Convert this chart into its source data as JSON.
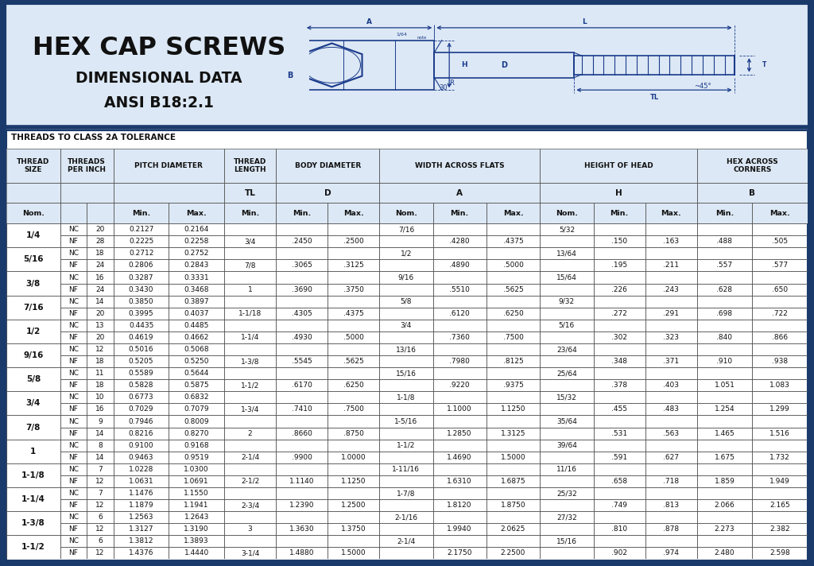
{
  "title_line1": "HEX CAP SCREWS",
  "title_line2": "DIMENSIONAL DATA",
  "title_line3": "ANSI B18:2.1",
  "section_title": "THREADS TO CLASS 2A TOLERANCE",
  "bg_color": "#dce8f5",
  "border_color": "#1a3a6b",
  "rows": [
    [
      "1/4",
      "NC",
      "20",
      "0.2127",
      "0.2164",
      "",
      "",
      "",
      "7/16",
      "",
      "",
      "5/32",
      "",
      "",
      "",
      ""
    ],
    [
      "",
      "NF",
      "28",
      "0.2225",
      "0.2258",
      "3/4",
      ".2450",
      ".2500",
      "",
      ".4280",
      ".4375",
      "",
      ".150",
      ".163",
      ".488",
      ".505"
    ],
    [
      "5/16",
      "NC",
      "18",
      "0.2712",
      "0.2752",
      "",
      "",
      "",
      "1/2",
      "",
      "",
      "13/64",
      "",
      "",
      "",
      ""
    ],
    [
      "",
      "NF",
      "24",
      "0.2806",
      "0.2843",
      "7/8",
      ".3065",
      ".3125",
      "",
      ".4890",
      ".5000",
      "",
      ".195",
      ".211",
      ".557",
      ".577"
    ],
    [
      "3/8",
      "NC",
      "16",
      "0.3287",
      "0.3331",
      "",
      "",
      "",
      "9/16",
      "",
      "",
      "15/64",
      "",
      "",
      "",
      ""
    ],
    [
      "",
      "NF",
      "24",
      "0.3430",
      "0.3468",
      "1",
      ".3690",
      ".3750",
      "",
      ".5510",
      ".5625",
      "",
      ".226",
      ".243",
      ".628",
      ".650"
    ],
    [
      "7/16",
      "NC",
      "14",
      "0.3850",
      "0.3897",
      "",
      "",
      "",
      "5/8",
      "",
      "",
      "9/32",
      "",
      "",
      "",
      ""
    ],
    [
      "",
      "NF",
      "20",
      "0.3995",
      "0.4037",
      "1-1/18",
      ".4305",
      ".4375",
      "",
      ".6120",
      ".6250",
      "",
      ".272",
      ".291",
      ".698",
      ".722"
    ],
    [
      "1/2",
      "NC",
      "13",
      "0.4435",
      "0.4485",
      "",
      "",
      "",
      "3/4",
      "",
      "",
      "5/16",
      "",
      "",
      "",
      ""
    ],
    [
      "",
      "NF",
      "20",
      "0.4619",
      "0.4662",
      "1-1/4",
      ".4930",
      ".5000",
      "",
      ".7360",
      ".7500",
      "",
      ".302",
      ".323",
      ".840",
      ".866"
    ],
    [
      "9/16",
      "NC",
      "12",
      "0.5016",
      "0.5068",
      "",
      "",
      "",
      "13/16",
      "",
      "",
      "23/64",
      "",
      "",
      "",
      ""
    ],
    [
      "",
      "NF",
      "18",
      "0.5205",
      "0.5250",
      "1-3/8",
      ".5545",
      ".5625",
      "",
      ".7980",
      ".8125",
      "",
      ".348",
      ".371",
      ".910",
      ".938"
    ],
    [
      "5/8",
      "NC",
      "11",
      "0.5589",
      "0.5644",
      "",
      "",
      "",
      "15/16",
      "",
      "",
      "25/64",
      "",
      "",
      "",
      ""
    ],
    [
      "",
      "NF",
      "18",
      "0.5828",
      "0.5875",
      "1-1/2",
      ".6170",
      ".6250",
      "",
      ".9220",
      ".9375",
      "",
      ".378",
      ".403",
      "1.051",
      "1.083"
    ],
    [
      "3/4",
      "NC",
      "10",
      "0.6773",
      "0.6832",
      "",
      "",
      "",
      "1-1/8",
      "",
      "",
      "15/32",
      "",
      "",
      "",
      ""
    ],
    [
      "",
      "NF",
      "16",
      "0.7029",
      "0.7079",
      "1-3/4",
      ".7410",
      ".7500",
      "",
      "1.1000",
      "1.1250",
      "",
      ".455",
      ".483",
      "1.254",
      "1.299"
    ],
    [
      "7/8",
      "NC",
      "9",
      "0.7946",
      "0.8009",
      "",
      "",
      "",
      "1-5/16",
      "",
      "",
      "35/64",
      "",
      "",
      "",
      ""
    ],
    [
      "",
      "NF",
      "14",
      "0.8216",
      "0.8270",
      "2",
      ".8660",
      ".8750",
      "",
      "1.2850",
      "1.3125",
      "",
      ".531",
      ".563",
      "1.465",
      "1.516"
    ],
    [
      "1",
      "NC",
      "8",
      "0.9100",
      "0.9168",
      "",
      "",
      "",
      "1-1/2",
      "",
      "",
      "39/64",
      "",
      "",
      "",
      ""
    ],
    [
      "",
      "NF",
      "14",
      "0.9463",
      "0.9519",
      "2-1/4",
      ".9900",
      "1.0000",
      "",
      "1.4690",
      "1.5000",
      "",
      ".591",
      ".627",
      "1.675",
      "1.732"
    ],
    [
      "1-1/8",
      "NC",
      "7",
      "1.0228",
      "1.0300",
      "",
      "",
      "",
      "1-11/16",
      "",
      "",
      "11/16",
      "",
      "",
      "",
      ""
    ],
    [
      "",
      "NF",
      "12",
      "1.0631",
      "1.0691",
      "2-1/2",
      "1.1140",
      "1.1250",
      "",
      "1.6310",
      "1.6875",
      "",
      ".658",
      ".718",
      "1.859",
      "1.949"
    ],
    [
      "1-1/4",
      "NC",
      "7",
      "1.1476",
      "1.1550",
      "",
      "",
      "",
      "1-7/8",
      "",
      "",
      "25/32",
      "",
      "",
      "",
      ""
    ],
    [
      "",
      "NF",
      "12",
      "1.1879",
      "1.1941",
      "2-3/4",
      "1.2390",
      "1.2500",
      "",
      "1.8120",
      "1.8750",
      "",
      ".749",
      ".813",
      "2.066",
      "2.165"
    ],
    [
      "1-3/8",
      "NC",
      "6",
      "1.2563",
      "1.2643",
      "",
      "",
      "",
      "2-1/16",
      "",
      "",
      "27/32",
      "",
      "",
      "",
      ""
    ],
    [
      "",
      "NF",
      "12",
      "1.3127",
      "1.3190",
      "3",
      "1.3630",
      "1.3750",
      "",
      "1.9940",
      "2.0625",
      "",
      ".810",
      ".878",
      "2.273",
      "2.382"
    ],
    [
      "1-1/2",
      "NC",
      "6",
      "1.3812",
      "1.3893",
      "",
      "",
      "",
      "2-1/4",
      "",
      "",
      "15/16",
      "",
      "",
      "",
      ""
    ],
    [
      "",
      "NF",
      "12",
      "1.4376",
      "1.4440",
      "3-1/4",
      "1.4880",
      "1.5000",
      "",
      "2.1750",
      "2.2500",
      "",
      ".902",
      ".974",
      "2.480",
      "2.598"
    ]
  ]
}
